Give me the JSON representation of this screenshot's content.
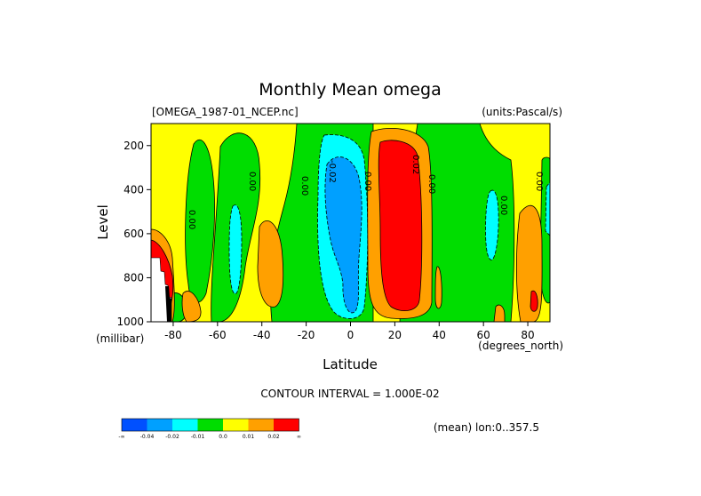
{
  "chart_data": {
    "type": "heatmap",
    "title": "Monthly Mean omega",
    "subtitle_left": "[OMEGA_1987-01_NCEP.nc]",
    "subtitle_right": "(units:Pascal/s)",
    "xlabel": "Latitude",
    "xunit": "(degrees_north)",
    "ylabel": "Level",
    "yunit": "(millibar)",
    "xlim": [
      -90,
      90
    ],
    "ylim": [
      1000,
      100
    ],
    "x_ticks": [
      -80,
      -60,
      -40,
      -20,
      0,
      20,
      40,
      60,
      80
    ],
    "x_tick_labels": [
      "-80",
      "-60",
      "-40",
      "-20",
      "0",
      "20",
      "40",
      "60",
      "80"
    ],
    "y_ticks": [
      200,
      400,
      600,
      800,
      1000
    ],
    "y_tick_labels": [
      "200",
      "400",
      "600",
      "800",
      "1000"
    ],
    "contour_interval_text": "CONTOUR INTERVAL = 1.000E-02",
    "region_text": "(mean) lon:0..357.5",
    "contour_labels": [
      "0.00",
      "-0.02",
      "0.00",
      "0.00",
      "0.02",
      "0.00",
      "0.00",
      "0.00",
      "0.00"
    ],
    "colorbar": {
      "colors": [
        "#0050ff",
        "#00a0ff",
        "#00ffff",
        "#00dd00",
        "#ffff00",
        "#ffa000",
        "#ff0000"
      ],
      "labels": [
        "-∞",
        "-0.04",
        "-0.02",
        "-0.01",
        "0.0",
        "0.01",
        "0.02",
        "∞"
      ]
    }
  }
}
